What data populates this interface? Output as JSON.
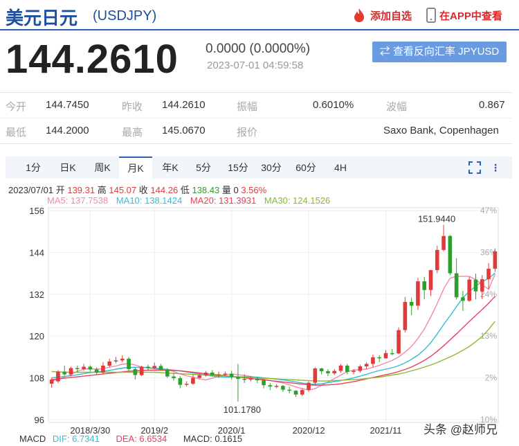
{
  "header": {
    "title": "美元日元",
    "symbol": "(USDJPY)",
    "add_watchlist": "添加自选",
    "open_app": "在APP中查看"
  },
  "quote": {
    "price": "144.2610",
    "change": "0.0000 (0.0000%)",
    "time": "2023-07-01 04:59:58",
    "reverse_button": "查看反向汇率 JPYUSD"
  },
  "stats": [
    [
      {
        "label": "今开",
        "value": "144.7450"
      },
      {
        "label": "昨收",
        "value": "144.2610"
      },
      {
        "label": "振幅",
        "value": "0.6010%"
      },
      {
        "label": "波幅",
        "value": "0.867"
      }
    ],
    [
      {
        "label": "最低",
        "value": "144.2000"
      },
      {
        "label": "最高",
        "value": "145.0670"
      },
      {
        "label": "报价",
        "value": "Saxo Bank, Copenhagen"
      }
    ]
  ],
  "tabs": [
    "1分",
    "日K",
    "周K",
    "月K",
    "年K",
    "5分",
    "15分",
    "30分",
    "60分",
    "4H"
  ],
  "active_tab": "月K",
  "ohlc": {
    "date": "2023/07/01",
    "open_label": "开",
    "open": "139.31",
    "high_label": "高",
    "high": "145.07",
    "close_label": "收",
    "close": "144.26",
    "low_label": "低",
    "low": "138.43",
    "volume_label": "量",
    "volume": "0",
    "change_pct": "3.56%"
  },
  "ma": {
    "ma5": "MA5: 137.7538",
    "ma10": "MA10: 138.1424",
    "ma20": "MA20: 131.3931",
    "ma30": "MA30: 124.1526"
  },
  "macd": {
    "label": "MACD",
    "dif": "DIF: 6.7341",
    "dea": "DEA: 6.6534",
    "macd": "MACD: 0.1615"
  },
  "watermark": "头条 @赵师兄",
  "colors": {
    "up": "#e03b3b",
    "down": "#2ca02c",
    "ma5": "#f08aa8",
    "ma10": "#34bcd6",
    "ma20": "#e8405a",
    "ma30": "#8ab82e"
  },
  "chart_data": {
    "type": "candlestick",
    "ylim": [
      96,
      156
    ],
    "y_ticks": [
      "156",
      "144",
      "132",
      "120",
      "108",
      "96"
    ],
    "pct_ticks": [
      "47%",
      "36%",
      "24%",
      "13%",
      "2%",
      "10%"
    ],
    "x_ticks": [
      "2018/3/30",
      "2019/2",
      "2020/1",
      "2020/12",
      "2021/11"
    ],
    "annotations": {
      "max": "151.9440",
      "min": "101.1780"
    },
    "candles": [
      [
        106.3,
        107.5,
        105.2,
        108.0
      ],
      [
        107.0,
        109.8,
        106.5,
        110.2
      ],
      [
        109.8,
        109.0,
        108.5,
        111.5
      ],
      [
        109.0,
        110.8,
        108.5,
        111.2
      ],
      [
        110.8,
        110.5,
        109.5,
        111.5
      ],
      [
        110.5,
        111.2,
        110.0,
        112.0
      ],
      [
        111.2,
        110.4,
        109.8,
        111.6
      ],
      [
        110.4,
        109.5,
        109.0,
        111.0
      ],
      [
        109.5,
        111.5,
        109.2,
        112.5
      ],
      [
        111.5,
        112.7,
        111.0,
        113.5
      ],
      [
        112.7,
        113.0,
        112.2,
        114.0
      ],
      [
        113.0,
        113.5,
        112.5,
        114.5
      ],
      [
        113.5,
        110.5,
        110.0,
        114.0
      ],
      [
        110.5,
        108.8,
        107.5,
        111.0
      ],
      [
        108.8,
        111.2,
        108.5,
        111.5
      ],
      [
        111.2,
        110.8,
        110.2,
        111.8
      ],
      [
        110.8,
        111.4,
        110.5,
        112.4
      ],
      [
        111.4,
        110.4,
        110.0,
        112.0
      ],
      [
        110.4,
        108.4,
        108.0,
        110.8
      ],
      [
        108.4,
        107.9,
        107.2,
        109.5
      ],
      [
        107.9,
        106.0,
        105.0,
        108.5
      ],
      [
        106.0,
        106.3,
        105.5,
        107.0
      ],
      [
        106.3,
        108.0,
        106.0,
        109.0
      ],
      [
        108.0,
        108.7,
        107.8,
        109.3
      ],
      [
        108.7,
        109.5,
        108.4,
        110.0
      ],
      [
        109.5,
        108.8,
        108.5,
        110.2
      ],
      [
        108.8,
        109.0,
        108.0,
        109.8
      ],
      [
        109.0,
        109.2,
        108.5,
        109.8
      ],
      [
        109.2,
        108.3,
        107.5,
        110.0
      ],
      [
        108.3,
        107.7,
        101.2,
        112.0
      ],
      [
        107.7,
        107.5,
        106.5,
        109.0
      ],
      [
        107.5,
        107.8,
        107.0,
        108.5
      ],
      [
        107.8,
        107.3,
        106.5,
        108.3
      ],
      [
        107.3,
        105.9,
        105.0,
        107.7
      ],
      [
        105.9,
        105.5,
        104.5,
        106.5
      ],
      [
        105.5,
        105.7,
        105.0,
        106.2
      ],
      [
        105.7,
        104.6,
        104.0,
        106.0
      ],
      [
        104.6,
        104.3,
        103.5,
        105.5
      ],
      [
        104.3,
        103.2,
        102.5,
        104.5
      ],
      [
        103.2,
        104.5,
        102.8,
        105.0
      ],
      [
        104.5,
        106.6,
        104.0,
        107.0
      ],
      [
        106.6,
        110.7,
        106.0,
        111.0
      ],
      [
        110.7,
        109.9,
        109.0,
        110.9
      ],
      [
        109.9,
        109.3,
        108.5,
        110.5
      ],
      [
        109.3,
        110.0,
        108.8,
        110.5
      ],
      [
        110.0,
        111.5,
        109.5,
        112.0
      ],
      [
        111.5,
        109.7,
        109.0,
        112.0
      ],
      [
        109.7,
        110.0,
        109.0,
        110.5
      ],
      [
        110.0,
        111.3,
        109.5,
        111.8
      ],
      [
        111.3,
        112.0,
        110.5,
        112.5
      ],
      [
        112.0,
        113.9,
        111.0,
        114.7
      ],
      [
        113.9,
        113.6,
        112.5,
        114.5
      ],
      [
        113.6,
        115.1,
        113.5,
        116.0
      ],
      [
        115.1,
        115.0,
        114.5,
        116.3
      ],
      [
        115.0,
        121.7,
        114.8,
        122.5
      ],
      [
        121.7,
        129.8,
        121.0,
        131.2
      ],
      [
        129.8,
        128.7,
        126.0,
        131.0
      ],
      [
        128.7,
        135.7,
        127.5,
        136.7
      ],
      [
        135.7,
        133.2,
        130.5,
        137.0
      ],
      [
        133.2,
        138.9,
        131.5,
        139.0
      ],
      [
        138.9,
        144.7,
        138.0,
        145.9
      ],
      [
        144.7,
        148.7,
        144.3,
        151.9
      ],
      [
        148.7,
        138.0,
        137.5,
        149.0
      ],
      [
        138.0,
        131.1,
        130.5,
        142.3
      ],
      [
        131.1,
        130.1,
        127.2,
        133.0
      ],
      [
        130.1,
        136.2,
        129.8,
        137.0
      ],
      [
        136.2,
        132.8,
        130.5,
        137.9
      ],
      [
        132.8,
        136.3,
        130.6,
        137.5
      ],
      [
        136.3,
        139.3,
        133.5,
        140.9
      ],
      [
        139.3,
        144.3,
        138.4,
        145.1
      ]
    ],
    "ma_series": [
      {
        "name": "MA5",
        "values": [
          107.0,
          107.6,
          108.2,
          108.9,
          109.9,
          110.5,
          110.6,
          110.5,
          110.6,
          111.1,
          111.4,
          111.9,
          112.1,
          111.7,
          111.1,
          110.9,
          110.6,
          110.4,
          110.3,
          109.8,
          109.1,
          108.6,
          108.2,
          107.7,
          107.4,
          107.9,
          108.4,
          108.9,
          109.1,
          108.9,
          108.7,
          108.4,
          108.0,
          107.6,
          107.2,
          106.9,
          106.5,
          106.0,
          105.4,
          104.9,
          104.5,
          104.9,
          105.9,
          106.8,
          107.8,
          108.8,
          109.8,
          110.2,
          110.4,
          110.5,
          111.0,
          111.6,
          112.3,
          113.0,
          114.0,
          115.4,
          117.0,
          119.3,
          122.0,
          125.5,
          129.3,
          133.5,
          136.6,
          137.1,
          137.1,
          137.1,
          136.2,
          134.7,
          133.4,
          137.8
        ]
      },
      {
        "name": "MA10",
        "values": [
          108.0,
          108.2,
          108.4,
          108.6,
          108.9,
          109.2,
          109.5,
          109.7,
          109.9,
          110.1,
          110.5,
          110.8,
          111.0,
          111.0,
          111.0,
          110.9,
          110.8,
          110.6,
          110.4,
          110.2,
          110.0,
          109.7,
          109.4,
          109.1,
          108.8,
          108.5,
          108.3,
          108.2,
          108.2,
          108.3,
          108.3,
          108.3,
          108.2,
          108.0,
          107.8,
          107.6,
          107.4,
          107.1,
          106.8,
          106.5,
          106.2,
          106.2,
          106.3,
          106.6,
          106.9,
          107.2,
          107.6,
          108.0,
          108.5,
          109.0,
          109.6,
          110.1,
          110.5,
          110.9,
          111.5,
          112.3,
          113.3,
          114.5,
          116.1,
          118.1,
          120.6,
          123.3,
          125.8,
          128.4,
          131.0,
          132.8,
          134.3,
          135.6,
          136.5,
          138.1
        ]
      },
      {
        "name": "MA20",
        "values": [
          107.5,
          107.7,
          107.9,
          108.1,
          108.3,
          108.5,
          108.7,
          108.9,
          109.1,
          109.3,
          109.5,
          109.7,
          109.9,
          110.0,
          110.1,
          110.2,
          110.2,
          110.2,
          110.2,
          110.1,
          110.0,
          109.8,
          109.6,
          109.4,
          109.2,
          109.0,
          108.8,
          108.6,
          108.4,
          108.2,
          108.0,
          107.8,
          107.6,
          107.4,
          107.2,
          107.0,
          106.8,
          106.6,
          106.4,
          106.2,
          106.0,
          105.9,
          105.9,
          106.0,
          106.1,
          106.3,
          106.6,
          106.9,
          107.3,
          107.7,
          108.1,
          108.5,
          108.9,
          109.3,
          109.8,
          110.4,
          111.1,
          112.0,
          113.0,
          114.2,
          115.6,
          117.2,
          118.9,
          120.6,
          122.4,
          124.2,
          125.9,
          127.6,
          129.4,
          131.4
        ]
      },
      {
        "name": "MA30",
        "values": [
          109.8,
          109.7,
          109.6,
          109.6,
          109.6,
          109.6,
          109.6,
          109.6,
          109.6,
          109.6,
          109.6,
          109.6,
          109.6,
          109.6,
          109.6,
          109.6,
          109.6,
          109.5,
          109.4,
          109.3,
          109.2,
          109.1,
          109.0,
          108.9,
          108.8,
          108.7,
          108.6,
          108.5,
          108.4,
          108.3,
          108.2,
          108.1,
          108.0,
          107.9,
          107.8,
          107.7,
          107.6,
          107.5,
          107.4,
          107.3,
          107.2,
          107.1,
          107.1,
          107.1,
          107.2,
          107.3,
          107.4,
          107.5,
          107.6,
          107.8,
          108.0,
          108.2,
          108.5,
          108.8,
          109.1,
          109.5,
          110.0,
          110.5,
          111.1,
          111.7,
          112.4,
          113.2,
          114.0,
          114.9,
          115.9,
          117.0,
          118.4,
          119.9,
          121.9,
          124.2
        ]
      }
    ]
  }
}
